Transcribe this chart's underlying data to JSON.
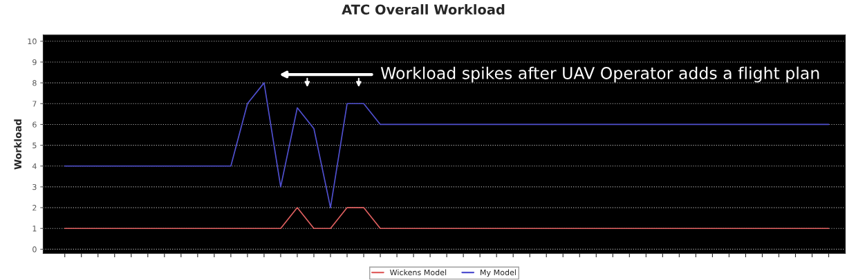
{
  "chart_data": {
    "type": "line",
    "title": "ATC Overall Workload",
    "ylabel": "Workload",
    "categories": [
      null,
      null,
      null,
      null,
      null,
      null,
      null,
      null,
      null,
      null,
      null,
      null,
      null,
      null,
      null,
      null,
      null,
      null,
      null,
      null,
      null,
      null,
      null,
      null,
      null,
      null,
      null,
      null,
      null,
      null,
      null,
      null,
      null,
      null,
      null,
      null,
      null,
      null,
      null,
      null,
      null,
      null,
      null,
      null,
      null,
      null,
      null
    ],
    "series": [
      {
        "name": "Wickens Model",
        "color": "#e06060",
        "values": [
          1,
          1,
          1,
          1,
          1,
          1,
          1,
          1,
          1,
          1,
          1,
          1,
          1,
          1,
          2,
          1,
          1,
          2,
          2,
          1,
          1,
          1,
          1,
          1,
          1,
          1,
          1,
          1,
          1,
          1,
          1,
          1,
          1,
          1,
          1,
          1,
          1,
          1,
          1,
          1,
          1,
          1,
          1,
          1,
          1,
          1,
          1
        ]
      },
      {
        "name": "My Model",
        "color": "#5050d0",
        "values": [
          4,
          4,
          4,
          4,
          4,
          4,
          4,
          4,
          4,
          4,
          4,
          7,
          8,
          3,
          6.8,
          5.8,
          2,
          7,
          7,
          6,
          6,
          6,
          6,
          6,
          6,
          6,
          6,
          6,
          6,
          6,
          6,
          6,
          6,
          6,
          6,
          6,
          6,
          6,
          6,
          6,
          6,
          6,
          6,
          6,
          6,
          6,
          6
        ]
      }
    ],
    "ylim": [
      -0.2,
      10.3
    ],
    "yticks": [
      0,
      1,
      2,
      3,
      4,
      5,
      6,
      7,
      8,
      9,
      10
    ],
    "grid": "y",
    "legend": "bottom",
    "marker": "none",
    "line_style": "solid",
    "annotations": [
      "Workload spikes after UAV Operator adds a flight plan"
    ]
  }
}
